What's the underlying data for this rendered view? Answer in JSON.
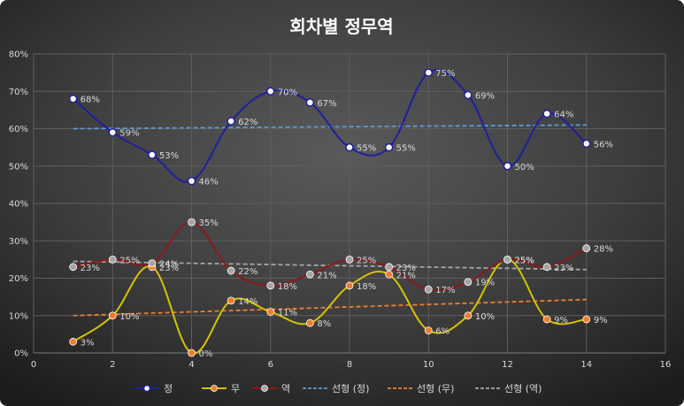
{
  "chart_data": {
    "type": "line",
    "title": "회차별 정무역",
    "xlabel": "",
    "ylabel": "",
    "xlim": [
      0,
      16
    ],
    "ylim": [
      0,
      80
    ],
    "x_ticks": [
      "0",
      "2",
      "4",
      "6",
      "8",
      "10",
      "12",
      "14",
      "16"
    ],
    "y_ticks": [
      "0%",
      "10%",
      "20%",
      "30%",
      "40%",
      "50%",
      "60%",
      "70%",
      "80%"
    ],
    "grid": true,
    "legend_position": "bottom",
    "x": [
      1,
      2,
      3,
      4,
      5,
      6,
      7,
      8,
      9,
      10,
      11,
      12,
      13,
      14
    ],
    "series": [
      {
        "name": "정",
        "color": "#1f1f9e",
        "values": [
          68,
          59,
          53,
          46,
          62,
          70,
          67,
          55,
          55,
          75,
          69,
          50,
          64,
          56
        ],
        "labels": [
          "68%",
          "59%",
          "53%",
          "46%",
          "62%",
          "70%",
          "67%",
          "55%",
          "55%",
          "75%",
          "69%",
          "50%",
          "64%",
          "56%"
        ]
      },
      {
        "name": "무",
        "color": "#d4c400",
        "marker_color": "#ed7d31",
        "values": [
          3,
          10,
          23,
          0,
          14,
          11,
          8,
          18,
          21,
          6,
          10,
          25,
          9,
          9
        ],
        "labels": [
          "3%",
          "10%",
          "23%",
          "0%",
          "14%",
          "11%",
          "8%",
          "18%",
          "21%",
          "6%",
          "10%",
          "25%",
          "9%",
          "9%"
        ]
      },
      {
        "name": "역",
        "color": "#8b1a1a",
        "marker_color": "#a5a5a5",
        "values": [
          23,
          25,
          24,
          35,
          22,
          18,
          21,
          25,
          23,
          17,
          19,
          25,
          23,
          28
        ],
        "labels": [
          "23%",
          "25%",
          "24%",
          "35%",
          "22%",
          "18%",
          "21%",
          "25%",
          "23%",
          "17%",
          "19%",
          "25%",
          "23%",
          "28%"
        ]
      }
    ],
    "trendlines": [
      {
        "name": "선형 (정)",
        "color": "#5b9bd5",
        "start": [
          1,
          60
        ],
        "end": [
          14,
          61
        ]
      },
      {
        "name": "선형 (무)",
        "color": "#ed7d31",
        "start": [
          1,
          10
        ],
        "end": [
          14,
          14.3
        ]
      },
      {
        "name": "선형 (역)",
        "color": "#a5a5a5",
        "start": [
          1,
          24.5
        ],
        "end": [
          14,
          22.3
        ]
      }
    ],
    "legend": [
      "정",
      "무",
      "역",
      "선형 (정)",
      "선형 (무)",
      "선형 (역)"
    ]
  }
}
